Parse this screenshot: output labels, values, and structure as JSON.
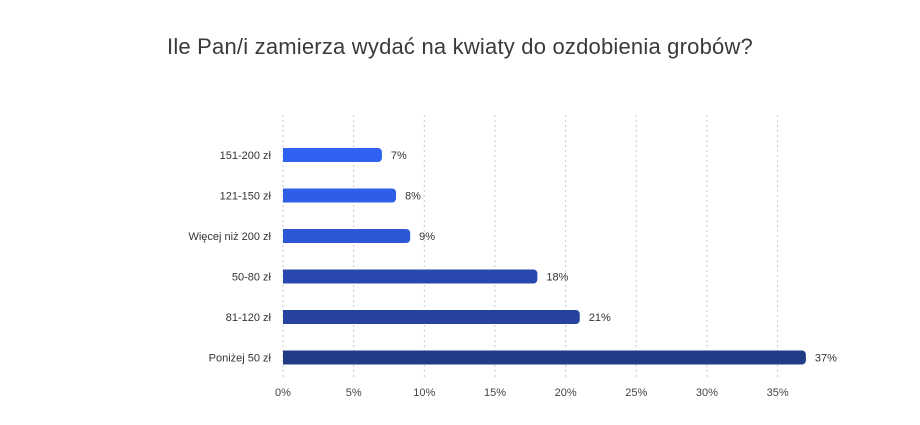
{
  "chart_data": {
    "type": "bar",
    "orientation": "horizontal",
    "title": "Ile Pan/i zamierza wydać na kwiaty do ozdobienia grobów?",
    "categories": [
      "151-200 zł",
      "121-150 zł",
      "Więcej niż 200 zł",
      "50-80 zł",
      "81-120 zł",
      "Poniżej 50 zł"
    ],
    "values": [
      7,
      8,
      9,
      18,
      21,
      37
    ],
    "value_labels": [
      "7%",
      "8%",
      "9%",
      "18%",
      "21%",
      "37%"
    ],
    "xlim": [
      0,
      38
    ],
    "xticks": [
      0,
      5,
      10,
      15,
      20,
      25,
      30,
      35
    ],
    "xtick_labels": [
      "0%",
      "5%",
      "10%",
      "15%",
      "20%",
      "25%",
      "30%",
      "35%"
    ],
    "grid": true,
    "colors": [
      "#2f62f0",
      "#2e5ee6",
      "#2d57d6",
      "#2848b0",
      "#26449f",
      "#203c86"
    ]
  }
}
